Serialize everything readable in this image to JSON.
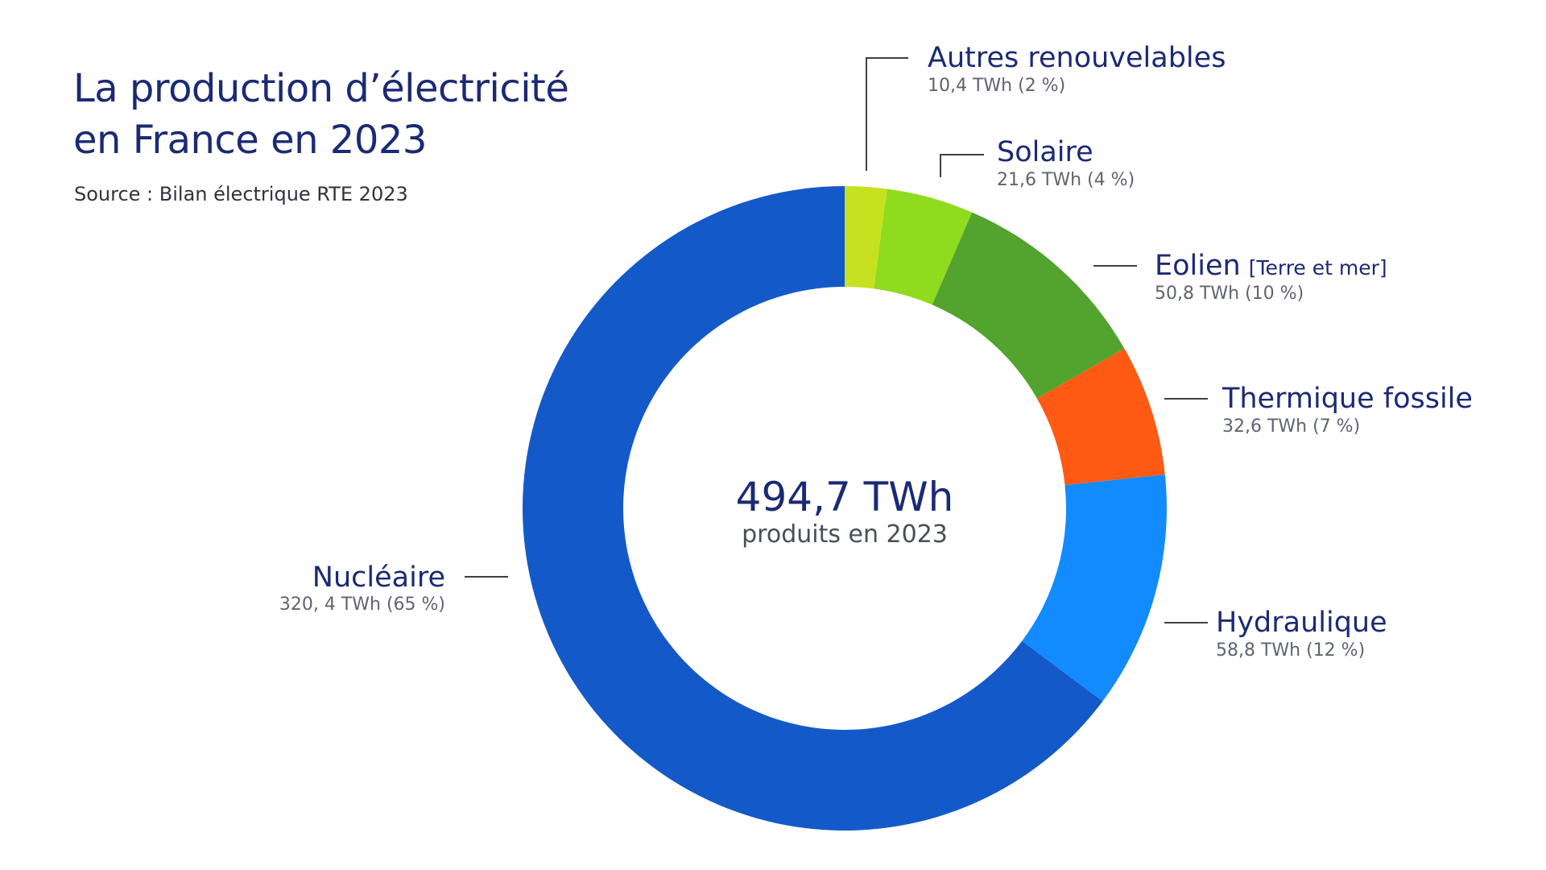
{
  "title_line1": "La production d’électricité",
  "title_line2": "en France en 2023",
  "source": "Source : Bilan électrique RTE 2023",
  "center": {
    "total": "494,7 TWh",
    "caption": "produits en 2023"
  },
  "chart_data": {
    "type": "pie",
    "style": "donut",
    "unit": "TWh",
    "total": 494.7,
    "slices": [
      {
        "name": "Autres renouvelables",
        "sub": "",
        "value": 10.4,
        "percent": 2,
        "value_label": "10,4 TWh (2 %)",
        "color": "#c6e11f"
      },
      {
        "name": "Solaire",
        "sub": "",
        "value": 21.6,
        "percent": 4,
        "value_label": "21,6 TWh (4 %)",
        "color": "#8fdb1d"
      },
      {
        "name": "Eolien",
        "sub": "[Terre et mer]",
        "value": 50.8,
        "percent": 10,
        "value_label": "50,8 TWh (10 %)",
        "color": "#53a32f"
      },
      {
        "name": "Thermique fossile",
        "sub": "",
        "value": 32.6,
        "percent": 7,
        "value_label": "32,6 TWh (7 %)",
        "color": "#ff5a14"
      },
      {
        "name": "Hydraulique",
        "sub": "",
        "value": 58.8,
        "percent": 12,
        "value_label": "58,8 TWh (12 %)",
        "color": "#128bff"
      },
      {
        "name": "Nucléaire",
        "sub": "",
        "value": 320.4,
        "percent": 65,
        "value_label": "320, 4 TWh (65 %)",
        "color": "#1459c8"
      }
    ]
  }
}
